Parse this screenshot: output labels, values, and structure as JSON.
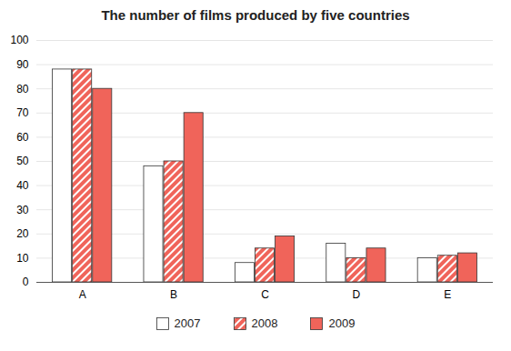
{
  "chart_data": {
    "type": "bar",
    "title": "The number of films produced by five countries",
    "categories": [
      "A",
      "B",
      "C",
      "D",
      "E"
    ],
    "series": [
      {
        "name": "2007",
        "color": "#ffffff",
        "values": [
          88,
          48,
          8,
          16,
          10
        ]
      },
      {
        "name": "2008",
        "color": "#f0645a",
        "line_style": "hatched",
        "values": [
          88,
          50,
          14,
          10,
          11
        ]
      },
      {
        "name": "2009",
        "color": "#f0645a",
        "values": [
          80,
          70,
          19,
          14,
          12
        ]
      }
    ],
    "ylim": [
      0,
      100
    ],
    "yticks": [
      0,
      10,
      20,
      30,
      40,
      50,
      60,
      70,
      80,
      90,
      100
    ],
    "grid": true,
    "legend": "bottom"
  }
}
